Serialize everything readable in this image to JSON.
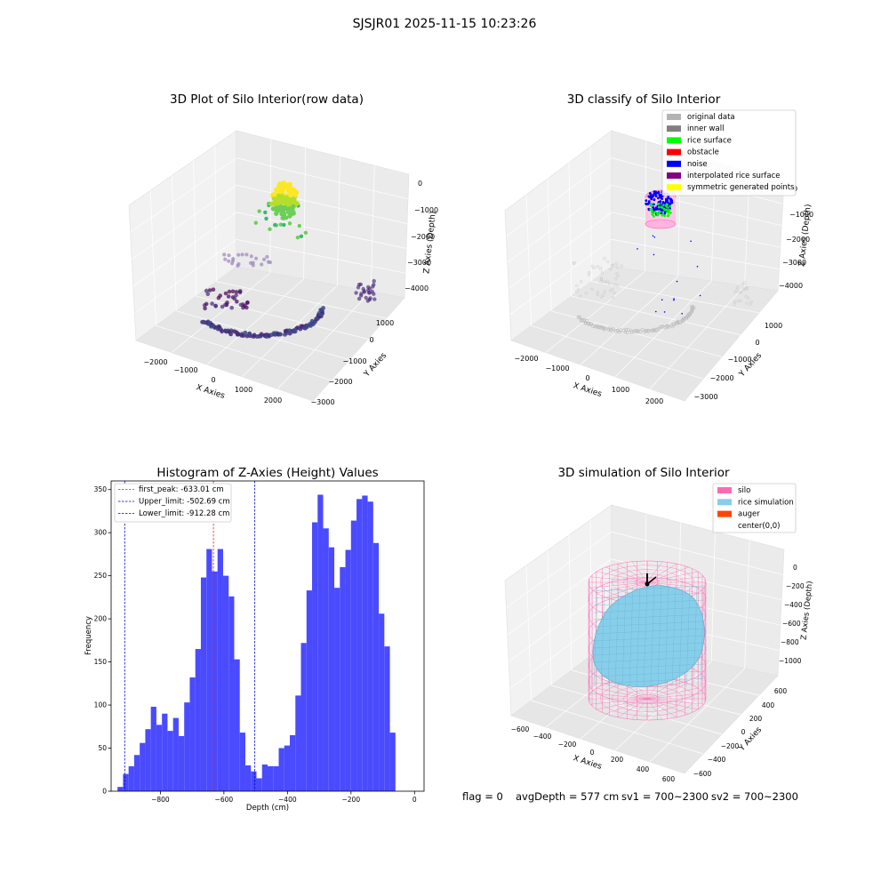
{
  "figure": {
    "suptitle": "SJSJR01 2025-11-15 10:23:26",
    "footer": {
      "flag": "flag = 0",
      "avg_depth": "avgDepth = 577 cm",
      "sv1": "sv1 = 700~2300",
      "sv2": "sv2 = 700~2300"
    }
  },
  "colors": {
    "bar": "#4a4aff",
    "peak_line": "#d62728",
    "limit_line": "#0000cc",
    "pane": "#f2f2f2",
    "grid": "#d9d9d9",
    "silo": "#ff69b4",
    "rice": "#87ceeb",
    "auger": "#ff4500",
    "original": "#b3b3b3",
    "inner_wall": "#808080",
    "rice_surface": "#00ff00",
    "obstacle": "#ff0000",
    "noise": "#0000ff",
    "interpolated": "#800080",
    "symmetric": "#ffff00"
  },
  "chart_data": [
    {
      "type": "scatter",
      "id": "raw",
      "title": "3D Plot of Silo Interior(row data)",
      "xlabel": "X Axies",
      "ylabel": "Y Axies",
      "zlabel": "Z Axies (Depth)",
      "xticks": [
        "−2000",
        "−1000",
        "0",
        "1000",
        "2000"
      ],
      "yticks": [
        "1000",
        "0",
        "−1000",
        "−2000",
        "−3000"
      ],
      "zticks": [
        "0",
        "−1000",
        "−2000",
        "−3000",
        "−4000"
      ],
      "xlim": [
        -2600,
        2600
      ],
      "ylim": [
        -3200,
        1400
      ],
      "zlim": [
        -4500,
        0
      ]
    },
    {
      "type": "scatter",
      "id": "classify",
      "title": "3D classify of Silo Interior",
      "xlabel": "X Axies",
      "ylabel": "Y Axies",
      "zlabel": "Z Axies (Depth)",
      "xticks": [
        "−2000",
        "−1000",
        "0",
        "1000",
        "2000"
      ],
      "yticks": [
        "1000",
        "0",
        "−1000",
        "−2000",
        "−3000"
      ],
      "zticks": [
        "0",
        "−1000",
        "−2000",
        "−3000",
        "−4000"
      ],
      "legend_position": "top-right",
      "legend": [
        {
          "label": "original data",
          "color": "#b3b3b3"
        },
        {
          "label": "inner wall",
          "color": "#808080"
        },
        {
          "label": "rice surface",
          "color": "#00ff00"
        },
        {
          "label": "obstacle",
          "color": "#ff0000"
        },
        {
          "label": "noise",
          "color": "#0000ff"
        },
        {
          "label": "interpolated rice surface",
          "color": "#800080"
        },
        {
          "label": "symmetric generated points",
          "color": "#ffff00"
        }
      ]
    },
    {
      "type": "bar",
      "id": "histogram",
      "title": "Histogram of Z-Axies (Height) Values",
      "xlabel": "Depth (cm)",
      "ylabel": "Frequency",
      "xlim": [
        -955,
        30
      ],
      "ylim": [
        0,
        360
      ],
      "xticks": [
        -800,
        -600,
        -400,
        -200,
        0
      ],
      "yticks": [
        0,
        50,
        100,
        150,
        200,
        250,
        300,
        350
      ],
      "bin_start": -935,
      "bin_width": 17.5,
      "values": [
        5,
        20,
        29,
        42,
        56,
        72,
        98,
        77,
        90,
        70,
        85,
        64,
        103,
        132,
        165,
        248,
        281,
        255,
        281,
        250,
        226,
        153,
        68,
        30,
        23,
        15,
        31,
        29,
        29,
        50,
        53,
        65,
        111,
        172,
        233,
        312,
        344,
        305,
        283,
        236,
        260,
        280,
        314,
        339,
        343,
        336,
        288,
        206,
        168,
        68,
        0
      ],
      "vlines": [
        {
          "label": "first_peak: -633.01 cm",
          "x": -633.01,
          "color": "#d62728"
        },
        {
          "label": "Upper_limit: -502.69 cm",
          "x": -502.69,
          "color": "#0000cc"
        },
        {
          "label": "Lower_limit: -912.28 cm",
          "x": -912.28,
          "color": "#0000cc"
        }
      ],
      "legend_position": "top-left"
    },
    {
      "type": "scatter",
      "id": "simulation",
      "title": "3D simulation of Silo Interior",
      "xlabel": "X Axies",
      "ylabel": "Y Axies",
      "zlabel": "Z Axies (Depth)",
      "xticks": [
        "−600",
        "−400",
        "−200",
        "0",
        "200",
        "400",
        "600"
      ],
      "yticks": [
        "600",
        "400",
        "200",
        "0",
        "−200",
        "−400",
        "−600"
      ],
      "zticks": [
        "0",
        "−200",
        "−400",
        "−600",
        "−800",
        "−1000"
      ],
      "legend_position": "top-right",
      "legend": [
        {
          "label": "silo",
          "color": "#ff69b4"
        },
        {
          "label": "rice simulation",
          "color": "#87ceeb"
        },
        {
          "label": "auger",
          "color": "#ff4500"
        },
        {
          "label": "center(0,0)",
          "color": ""
        }
      ]
    }
  ]
}
